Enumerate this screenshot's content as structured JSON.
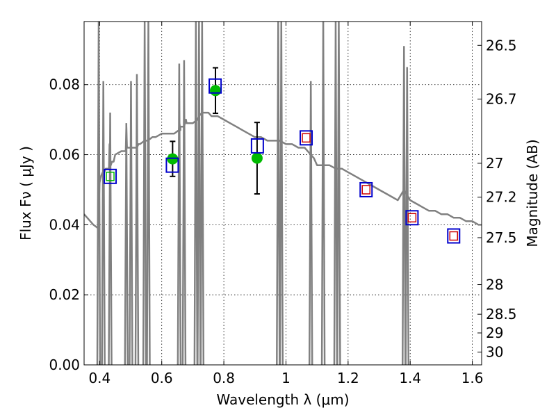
{
  "chart_data": {
    "type": "line",
    "xlabel": "Wavelength  λ (μm)",
    "ylabel": "Flux  Fν  ( μJy )",
    "y2label": "Magnitude (AB)",
    "xlim": [
      0.35,
      1.63
    ],
    "ylim": [
      0.0,
      0.098
    ],
    "grid": true,
    "x_ticks": [
      0.4,
      0.6,
      0.8,
      1.0,
      1.2,
      1.4,
      1.6
    ],
    "x_tick_labels": [
      "0.4",
      "0.6",
      "0.8",
      "1",
      "1.2",
      "1.4",
      "1.6"
    ],
    "y_ticks": [
      0.0,
      0.02,
      0.04,
      0.06,
      0.08
    ],
    "y_tick_labels": [
      "0.00",
      "0.02",
      "0.04",
      "0.06",
      "0.08"
    ],
    "mag_ticks": [
      "26.5",
      "26.7",
      "27",
      "27.2",
      "27.5",
      "28",
      "28.5",
      "29",
      "30"
    ],
    "colors": {
      "sed": "#808080",
      "observed": "#00bb00",
      "model_box": "#0000cc",
      "upper_box": "#cc0000",
      "errorbar": "#000000"
    },
    "series": [
      {
        "name": "SED model",
        "kind": "line",
        "x": [
          0.35,
          0.36,
          0.38,
          0.395,
          0.397,
          0.398,
          0.4,
          0.402,
          0.405,
          0.41,
          0.415,
          0.42,
          0.425,
          0.43,
          0.432,
          0.434,
          0.436,
          0.44,
          0.445,
          0.45,
          0.47,
          0.484,
          0.486,
          0.488,
          0.5,
          0.52,
          0.525,
          0.53,
          0.545,
          0.55,
          0.555,
          0.57,
          0.58,
          0.6,
          0.62,
          0.64,
          0.655,
          0.657,
          0.66,
          0.66,
          0.672,
          0.675,
          0.678,
          0.68,
          0.7,
          0.715,
          0.72,
          0.73,
          0.74,
          0.75,
          0.76,
          0.78,
          0.8,
          0.82,
          0.84,
          0.86,
          0.88,
          0.9,
          0.92,
          0.94,
          0.96,
          0.98,
          1.0,
          1.02,
          1.04,
          1.06,
          1.08,
          1.09,
          1.1,
          1.12,
          1.14,
          1.16,
          1.17,
          1.18,
          1.2,
          1.22,
          1.24,
          1.26,
          1.28,
          1.3,
          1.32,
          1.34,
          1.36,
          1.38,
          1.4,
          1.42,
          1.44,
          1.46,
          1.48,
          1.5,
          1.52,
          1.54,
          1.56,
          1.58,
          1.6,
          1.62,
          1.63
        ],
        "y": [
          0.043,
          0.042,
          0.04,
          0.039,
          0.038,
          0.047,
          0.052,
          0.053,
          0.054,
          0.055,
          0.055,
          0.056,
          0.056,
          0.056,
          0.063,
          0.059,
          0.057,
          0.058,
          0.058,
          0.06,
          0.061,
          0.061,
          0.068,
          0.062,
          0.062,
          0.062,
          0.063,
          0.063,
          0.064,
          0.064,
          0.064,
          0.065,
          0.065,
          0.066,
          0.066,
          0.066,
          0.067,
          0.069,
          0.067,
          0.068,
          0.068,
          0.069,
          0.07,
          0.069,
          0.069,
          0.07,
          0.071,
          0.072,
          0.072,
          0.072,
          0.071,
          0.071,
          0.07,
          0.069,
          0.068,
          0.067,
          0.066,
          0.065,
          0.065,
          0.064,
          0.064,
          0.064,
          0.063,
          0.063,
          0.062,
          0.062,
          0.06,
          0.059,
          0.057,
          0.057,
          0.057,
          0.056,
          0.056,
          0.056,
          0.055,
          0.054,
          0.053,
          0.052,
          0.051,
          0.05,
          0.049,
          0.048,
          0.047,
          0.05,
          0.047,
          0.046,
          0.045,
          0.044,
          0.044,
          0.043,
          0.043,
          0.042,
          0.042,
          0.041,
          0.041,
          0.04,
          0.04
        ]
      },
      {
        "name": "Emission lines",
        "kind": "spikes",
        "x": [
          0.397,
          0.412,
          0.434,
          0.486,
          0.501,
          0.52,
          0.545,
          0.557,
          0.6563,
          0.672,
          0.71,
          0.72,
          0.73,
          0.975,
          0.985,
          1.08,
          1.12,
          1.16,
          1.17,
          1.38,
          1.39
        ],
        "y": [
          0.098,
          0.081,
          0.072,
          0.069,
          0.081,
          0.083,
          0.098,
          0.098,
          0.086,
          0.087,
          0.098,
          0.098,
          0.098,
          0.098,
          0.098,
          0.081,
          0.098,
          0.098,
          0.098,
          0.091,
          0.085
        ]
      },
      {
        "name": "Observed photometry",
        "kind": "points",
        "x": [
          0.635,
          0.773,
          0.907
        ],
        "y": [
          0.0588,
          0.0783,
          0.059
        ],
        "yerr": [
          0.005,
          0.0065,
          0.0102
        ]
      },
      {
        "name": "Model photometry (blue boxes)",
        "kind": "squares",
        "x": [
          0.434,
          0.634,
          0.772,
          0.908,
          1.065,
          1.258,
          1.406,
          1.54
        ],
        "y": [
          0.0538,
          0.057,
          0.0796,
          0.0625,
          0.0648,
          0.05,
          0.042,
          0.0368
        ]
      },
      {
        "name": "Upper points (red boxes)",
        "kind": "small_squares",
        "x": [
          1.065,
          1.258,
          1.406,
          1.54
        ],
        "y": [
          0.0648,
          0.05,
          0.042,
          0.0368
        ]
      },
      {
        "name": "Green inner box",
        "kind": "small_squares",
        "x": [
          0.434
        ],
        "y": [
          0.0538
        ]
      }
    ]
  }
}
